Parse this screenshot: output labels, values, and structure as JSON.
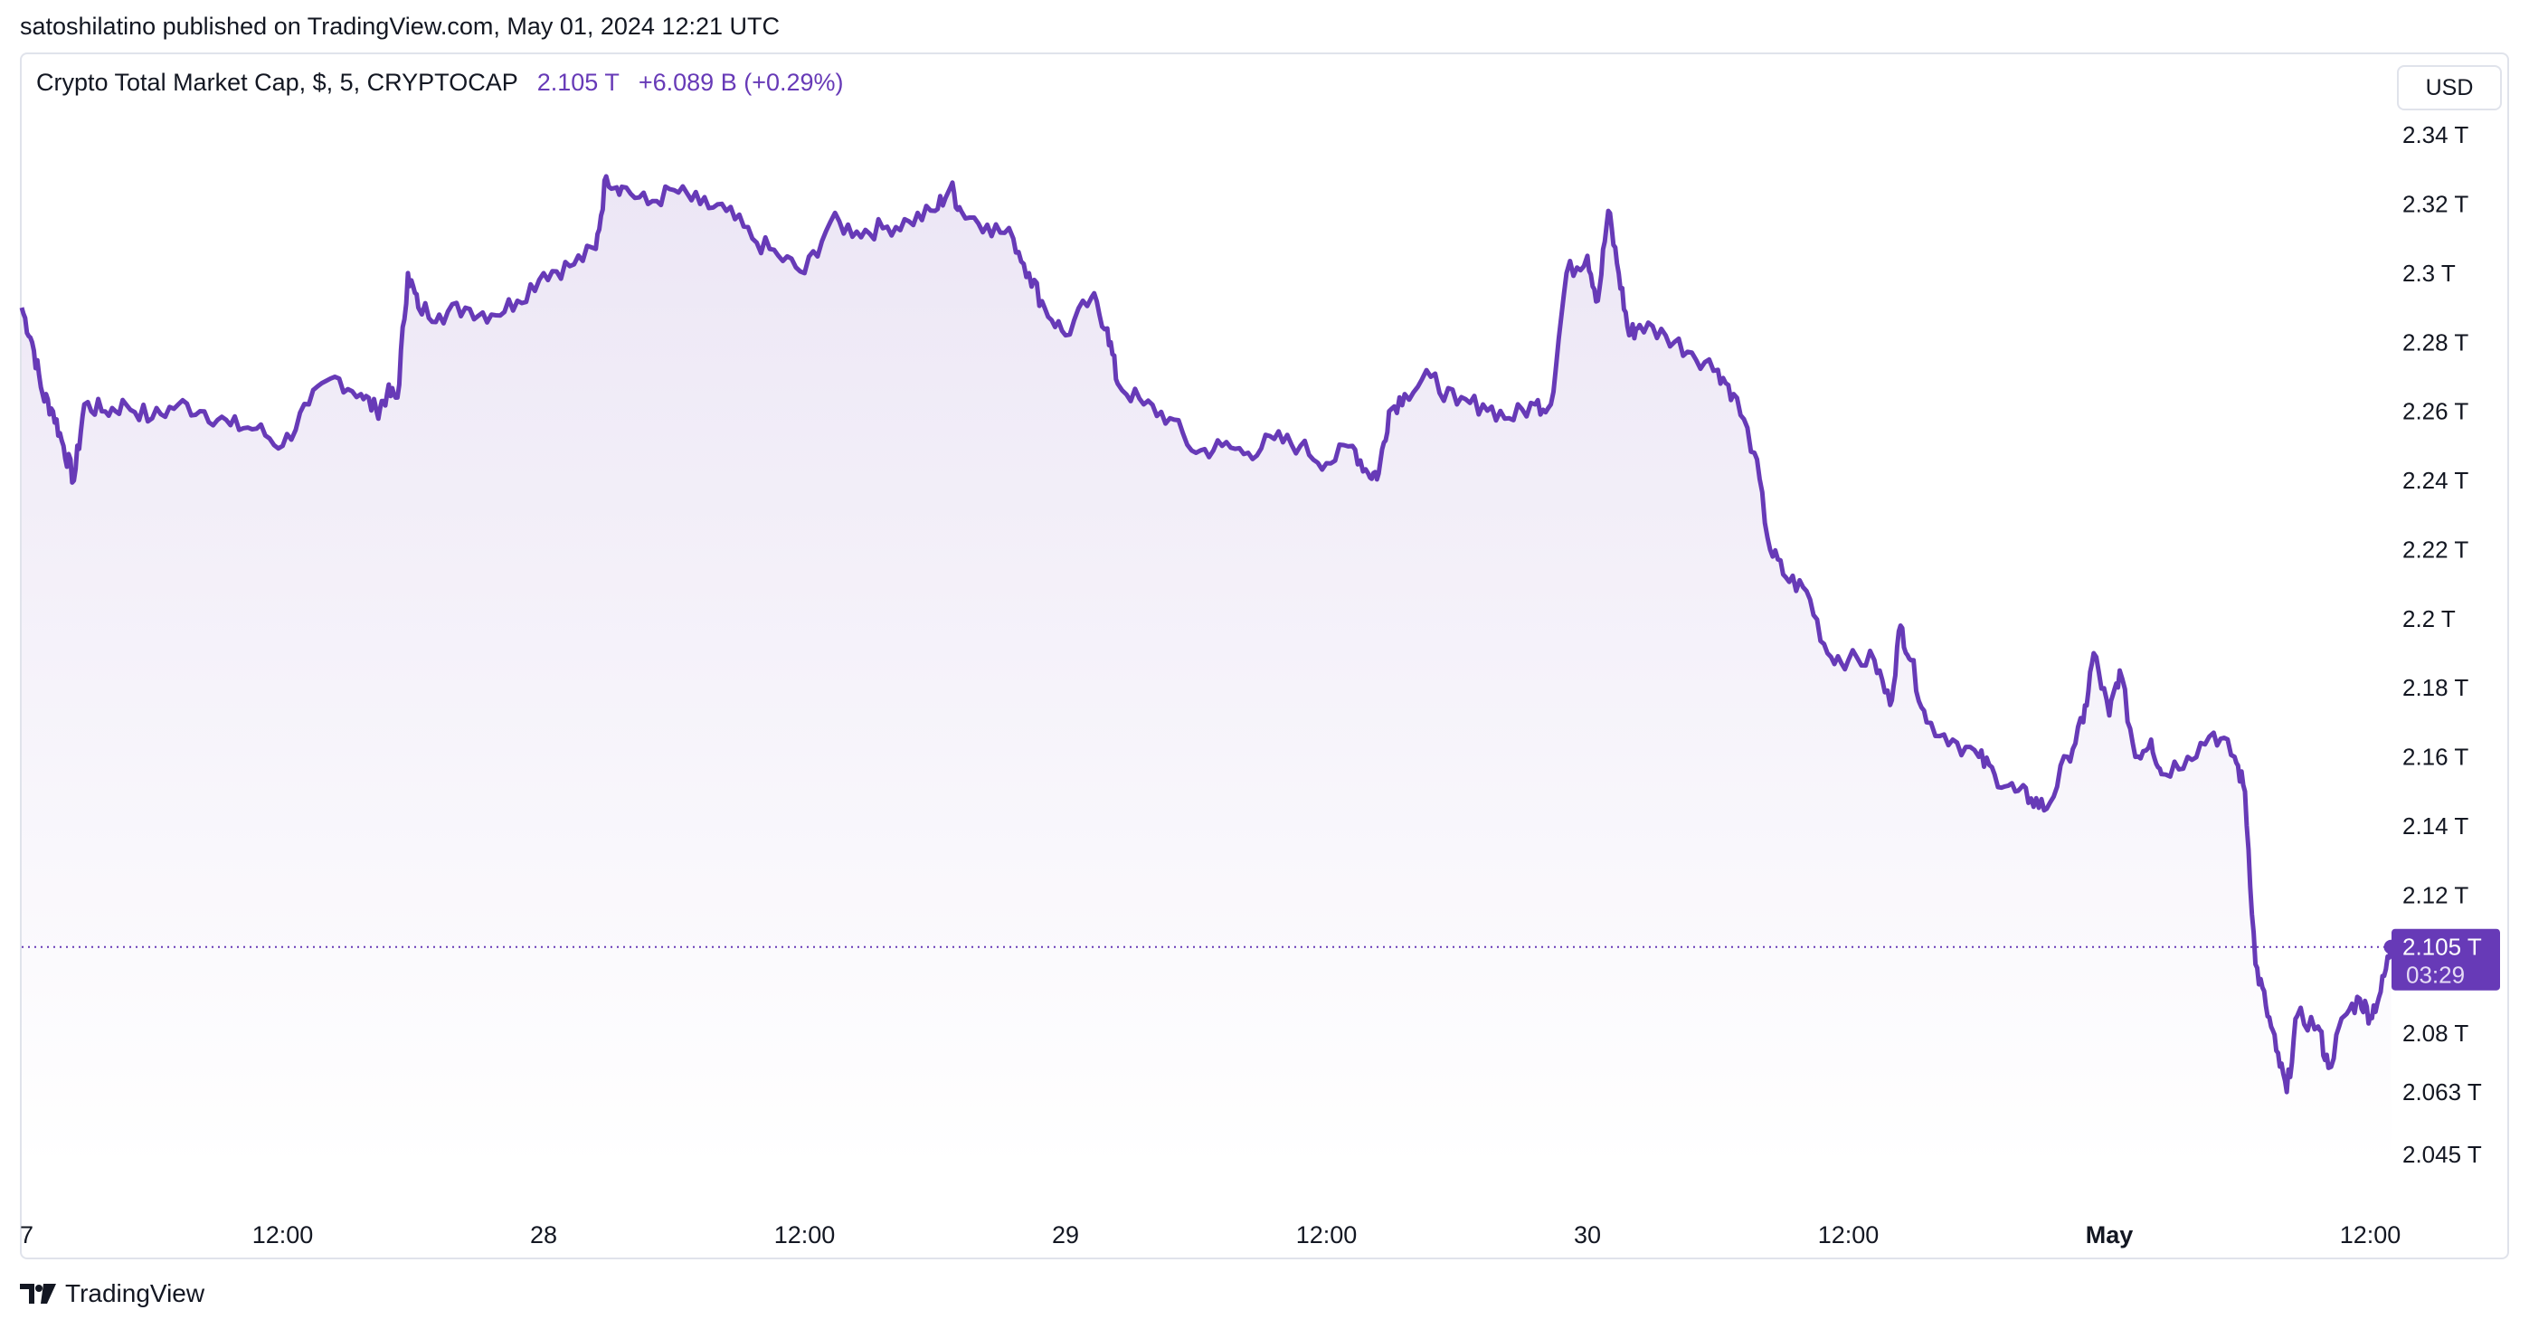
{
  "header": {
    "published": "satoshilatino published on TradingView.com, May 01, 2024 12:21 UTC"
  },
  "legend": {
    "symbol": "Crypto Total Market Cap, $, 5, CRYPTOCAP",
    "value": "2.105 T",
    "change": "+6.089 B (+0.29%)"
  },
  "currency_button": "USD",
  "last_price": {
    "label": "2.105 T",
    "countdown": "03:29"
  },
  "footer": {
    "brand": "TradingView"
  },
  "colors": {
    "line": "#673ab7",
    "area_top": "#ece6f5",
    "area_bottom": "#ffffff",
    "badge": "#673ab7"
  },
  "chart_data": {
    "type": "area",
    "title": "Crypto Total Market Cap, $, 5, CRYPTOCAP",
    "x_tick_labels": [
      "7",
      "12:00",
      "28",
      "12:00",
      "29",
      "12:00",
      "30",
      "12:00",
      "May",
      "12:00"
    ],
    "y_tick_labels": [
      "2.34 T",
      "2.32 T",
      "2.3 T",
      "2.28 T",
      "2.26 T",
      "2.24 T",
      "2.22 T",
      "2.2 T",
      "2.18 T",
      "2.16 T",
      "2.14 T",
      "2.12 T",
      "2.08 T",
      "2.063 T",
      "2.045 T"
    ],
    "y_ticks": [
      2.34,
      2.32,
      2.3,
      2.28,
      2.26,
      2.24,
      2.22,
      2.2,
      2.18,
      2.16,
      2.14,
      2.12,
      2.08,
      2.063,
      2.045
    ],
    "x_ticks": [
      0,
      0.5,
      1,
      1.5,
      2,
      2.5,
      3,
      3.5,
      4,
      4.5
    ],
    "x_unit": "days from Apr 27 00:00 UTC",
    "series": [
      {
        "values": [
          [
            0.0,
            2.29
          ],
          [
            0.02,
            2.28
          ],
          [
            0.04,
            2.265
          ],
          [
            0.06,
            2.26
          ],
          [
            0.08,
            2.25
          ],
          [
            0.1,
            2.24
          ],
          [
            0.12,
            2.262
          ],
          [
            0.16,
            2.26
          ],
          [
            0.2,
            2.262
          ],
          [
            0.25,
            2.258
          ],
          [
            0.3,
            2.262
          ],
          [
            0.35,
            2.26
          ],
          [
            0.4,
            2.256
          ],
          [
            0.45,
            2.255
          ],
          [
            0.5,
            2.25
          ],
          [
            0.55,
            2.262
          ],
          [
            0.6,
            2.27
          ],
          [
            0.65,
            2.265
          ],
          [
            0.68,
            2.26
          ],
          [
            0.7,
            2.265
          ],
          [
            0.72,
            2.264
          ],
          [
            0.74,
            2.3
          ],
          [
            0.76,
            2.29
          ],
          [
            0.8,
            2.288
          ],
          [
            0.85,
            2.29
          ],
          [
            0.9,
            2.288
          ],
          [
            0.95,
            2.292
          ],
          [
            1.0,
            2.3
          ],
          [
            1.05,
            2.302
          ],
          [
            1.1,
            2.307
          ],
          [
            1.12,
            2.328
          ],
          [
            1.15,
            2.325
          ],
          [
            1.2,
            2.32
          ],
          [
            1.25,
            2.324
          ],
          [
            1.3,
            2.32
          ],
          [
            1.35,
            2.318
          ],
          [
            1.4,
            2.31
          ],
          [
            1.45,
            2.305
          ],
          [
            1.5,
            2.3
          ],
          [
            1.55,
            2.315
          ],
          [
            1.6,
            2.312
          ],
          [
            1.65,
            2.313
          ],
          [
            1.7,
            2.315
          ],
          [
            1.75,
            2.318
          ],
          [
            1.78,
            2.325
          ],
          [
            1.8,
            2.318
          ],
          [
            1.85,
            2.314
          ],
          [
            1.9,
            2.31
          ],
          [
            1.93,
            2.3
          ],
          [
            1.96,
            2.29
          ],
          [
            2.0,
            2.282
          ],
          [
            2.05,
            2.293
          ],
          [
            2.08,
            2.284
          ],
          [
            2.1,
            2.268
          ],
          [
            2.15,
            2.262
          ],
          [
            2.2,
            2.258
          ],
          [
            2.25,
            2.248
          ],
          [
            2.3,
            2.25
          ],
          [
            2.35,
            2.248
          ],
          [
            2.4,
            2.252
          ],
          [
            2.45,
            2.25
          ],
          [
            2.5,
            2.245
          ],
          [
            2.55,
            2.25
          ],
          [
            2.58,
            2.242
          ],
          [
            2.6,
            2.242
          ],
          [
            2.62,
            2.26
          ],
          [
            2.65,
            2.265
          ],
          [
            2.7,
            2.27
          ],
          [
            2.75,
            2.262
          ],
          [
            2.8,
            2.262
          ],
          [
            2.85,
            2.258
          ],
          [
            2.9,
            2.262
          ],
          [
            2.93,
            2.262
          ],
          [
            2.96,
            2.3
          ],
          [
            3.0,
            2.305
          ],
          [
            3.02,
            2.292
          ],
          [
            3.04,
            2.318
          ],
          [
            3.06,
            2.3
          ],
          [
            3.08,
            2.282
          ],
          [
            3.1,
            2.285
          ],
          [
            3.15,
            2.282
          ],
          [
            3.2,
            2.277
          ],
          [
            3.25,
            2.272
          ],
          [
            3.28,
            2.265
          ],
          [
            3.32,
            2.248
          ],
          [
            3.35,
            2.22
          ],
          [
            3.38,
            2.212
          ],
          [
            3.42,
            2.208
          ],
          [
            3.46,
            2.19
          ],
          [
            3.5,
            2.188
          ],
          [
            3.55,
            2.188
          ],
          [
            3.58,
            2.175
          ],
          [
            3.6,
            2.198
          ],
          [
            3.62,
            2.188
          ],
          [
            3.65,
            2.17
          ],
          [
            3.7,
            2.165
          ],
          [
            3.75,
            2.16
          ],
          [
            3.78,
            2.155
          ],
          [
            3.82,
            2.15
          ],
          [
            3.85,
            2.148
          ],
          [
            3.88,
            2.145
          ],
          [
            3.92,
            2.16
          ],
          [
            3.95,
            2.17
          ],
          [
            3.97,
            2.19
          ],
          [
            4.0,
            2.172
          ],
          [
            4.02,
            2.185
          ],
          [
            4.05,
            2.16
          ],
          [
            4.08,
            2.165
          ],
          [
            4.1,
            2.155
          ],
          [
            4.15,
            2.16
          ],
          [
            4.2,
            2.167
          ],
          [
            4.24,
            2.16
          ],
          [
            4.26,
            2.15
          ],
          [
            4.28,
            2.1
          ],
          [
            4.3,
            2.088
          ],
          [
            4.32,
            2.075
          ],
          [
            4.34,
            2.063
          ],
          [
            4.36,
            2.085
          ],
          [
            4.4,
            2.082
          ],
          [
            4.42,
            2.07
          ],
          [
            4.45,
            2.085
          ],
          [
            4.48,
            2.09
          ],
          [
            4.5,
            2.085
          ],
          [
            4.52,
            2.092
          ],
          [
            4.54,
            2.105
          ]
        ]
      }
    ],
    "last_value": 2.105,
    "grid": false,
    "legend": "top-left"
  }
}
